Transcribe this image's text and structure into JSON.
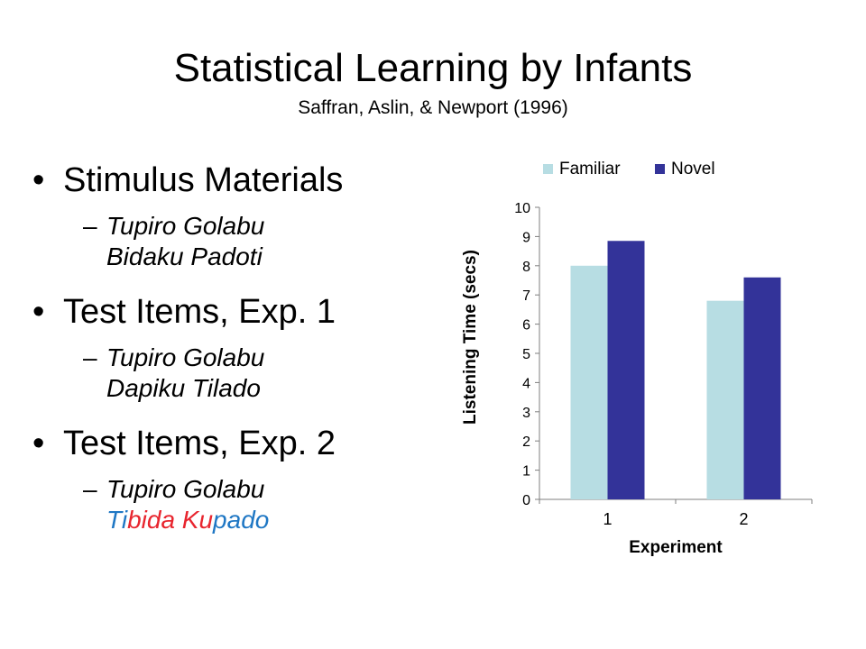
{
  "slide": {
    "title": "Statistical Learning by Infants",
    "subtitle": "Saffran, Aslin, & Newport (1996)"
  },
  "bullets": [
    {
      "label": "Stimulus Materials",
      "sub": {
        "dash": "–",
        "line1": "Tupiro Golabu",
        "line2": "Bidaku Padoti"
      }
    },
    {
      "label": "Test Items, Exp. 1",
      "sub": {
        "dash": "–",
        "line1": "Tupiro Golabu",
        "line2": "Dapiku Tilado"
      }
    },
    {
      "label": "Test Items, Exp. 2",
      "sub": {
        "dash": "–",
        "line1": "Tupiro Golabu",
        "line2_segments": [
          {
            "text": "Ti",
            "color": "#1f77c4"
          },
          {
            "text": "bida",
            "color": "#e8252e"
          },
          {
            "text": " Ku",
            "color": "#e8252e"
          },
          {
            "text": "pado",
            "color": "#1f77c4"
          }
        ]
      }
    }
  ],
  "chart_data": {
    "type": "bar",
    "categories": [
      "1",
      "2"
    ],
    "series": [
      {
        "name": "Familiar",
        "values": [
          8.0,
          6.8
        ],
        "color": "#b7dde3"
      },
      {
        "name": "Novel",
        "values": [
          8.85,
          7.6
        ],
        "color": "#333399"
      }
    ],
    "xlabel": "Experiment",
    "ylabel": "Listening Time (secs)",
    "ylim": [
      0,
      10
    ],
    "yticks": [
      0,
      1,
      2,
      3,
      4,
      5,
      6,
      7,
      8,
      9,
      10
    ],
    "grid": false,
    "legend": "top"
  }
}
